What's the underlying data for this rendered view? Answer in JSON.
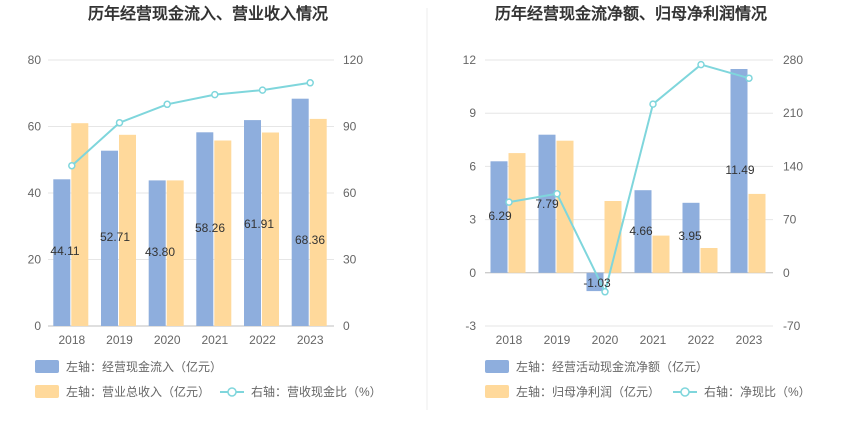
{
  "chart_data": [
    {
      "type": "bar",
      "title": "历年经营现金流入、营业收入情况",
      "categories": [
        "2018",
        "2019",
        "2020",
        "2021",
        "2022",
        "2023"
      ],
      "left_axis": {
        "ylim": [
          0,
          80
        ],
        "ticks": [
          "0",
          "20",
          "40",
          "60",
          "80"
        ]
      },
      "right_axis": {
        "ylim": [
          0,
          120
        ],
        "ticks": [
          "0",
          "30",
          "60",
          "90",
          "120"
        ]
      },
      "series": [
        {
          "name": "左轴：经营现金流入（亿元）",
          "type": "bar",
          "axis": "left",
          "color": "#8eaedd",
          "values": [
            44.11,
            52.71,
            43.8,
            58.26,
            61.91,
            68.36
          ],
          "labels": [
            "44.11",
            "52.71",
            "43.80",
            "58.26",
            "61.91",
            "68.36"
          ]
        },
        {
          "name": "左轴：营业总收入（亿元）",
          "type": "bar",
          "axis": "left",
          "color": "#ffd99b",
          "values": [
            61.0,
            57.5,
            43.8,
            55.8,
            58.2,
            62.3
          ]
        },
        {
          "name": "右轴：营收现金比（%）",
          "type": "line",
          "axis": "right",
          "color": "#7fd6dc",
          "values": [
            72.3,
            91.7,
            100.0,
            104.4,
            106.4,
            109.7
          ]
        }
      ],
      "grid": true,
      "legend_position": "bottom-left"
    },
    {
      "type": "bar",
      "title": "历年经营现金流净额、归母净利润情况",
      "categories": [
        "2018",
        "2019",
        "2020",
        "2021",
        "2022",
        "2023"
      ],
      "left_axis": {
        "ylim": [
          -3,
          12
        ],
        "ticks": [
          "-3",
          "0",
          "3",
          "6",
          "9",
          "12"
        ]
      },
      "right_axis": {
        "ylim": [
          -70,
          280
        ],
        "ticks": [
          "-70",
          "0",
          "70",
          "140",
          "210",
          "280"
        ]
      },
      "series": [
        {
          "name": "左轴：经营活动现金流净额（亿元）",
          "type": "bar",
          "axis": "left",
          "color": "#8eaedd",
          "values": [
            6.29,
            7.79,
            -1.03,
            4.66,
            3.95,
            11.49
          ],
          "labels": [
            "6.29",
            "7.79",
            "-1.03",
            "4.66",
            "3.95",
            "11.49"
          ]
        },
        {
          "name": "左轴：归母净利润（亿元）",
          "type": "bar",
          "axis": "left",
          "color": "#ffd99b",
          "values": [
            6.75,
            7.45,
            4.05,
            2.1,
            1.4,
            4.45
          ]
        },
        {
          "name": "右轴：净现比（%）",
          "type": "line",
          "axis": "right",
          "color": "#7fd6dc",
          "values": [
            93,
            104,
            -25,
            222,
            274,
            256
          ]
        }
      ],
      "grid": true,
      "legend_position": "bottom-left"
    }
  ]
}
